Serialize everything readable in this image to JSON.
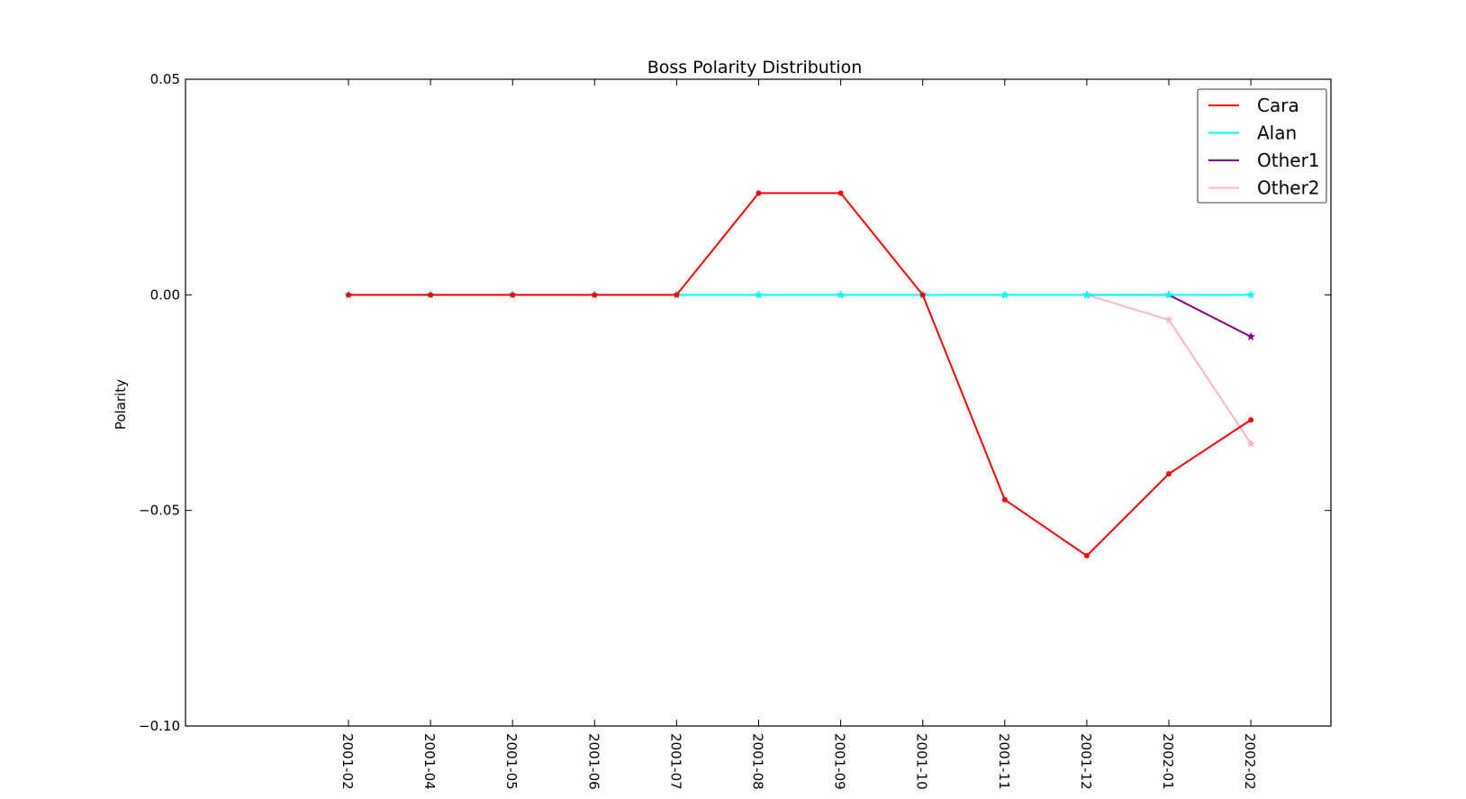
{
  "chart_data": {
    "type": "line",
    "title": "Boss Polarity Distribution",
    "xlabel": "",
    "ylabel": "Polarity",
    "categories": [
      "2001-02",
      "2001-04",
      "2001-05",
      "2001-06",
      "2001-07",
      "2001-08",
      "2001-09",
      "2001-10",
      "2001-11",
      "2001-12",
      "2002-01",
      "2002-02"
    ],
    "ylim": [
      -0.1,
      0.05
    ],
    "yticks": [
      0.05,
      0.0,
      -0.05,
      -0.1
    ],
    "ytick_labels": [
      "0.05",
      "0.00",
      "−0.05",
      "−0.10"
    ],
    "grid": false,
    "legend_position": "top-right",
    "series": [
      {
        "name": "Cara",
        "color": "#ff0000",
        "marker": "dot",
        "values": [
          0,
          0,
          0,
          0,
          0,
          0.0236,
          0.0236,
          0,
          -0.0475,
          -0.0605,
          -0.0415,
          -0.029
        ]
      },
      {
        "name": "Alan",
        "color": "#00ffff",
        "marker": "star",
        "values": [
          0,
          0,
          0,
          0,
          0,
          0,
          0,
          0,
          0,
          0,
          0,
          0
        ]
      },
      {
        "name": "Other1",
        "color": "#800080",
        "marker": "star",
        "values": [
          null,
          null,
          null,
          null,
          null,
          null,
          null,
          null,
          null,
          0,
          0,
          -0.0097
        ]
      },
      {
        "name": "Other2",
        "color": "#ffb6c1",
        "marker": "star",
        "values": [
          0,
          0,
          0,
          0,
          0,
          0,
          0,
          0,
          0,
          0,
          -0.0058,
          -0.0345
        ]
      }
    ]
  }
}
